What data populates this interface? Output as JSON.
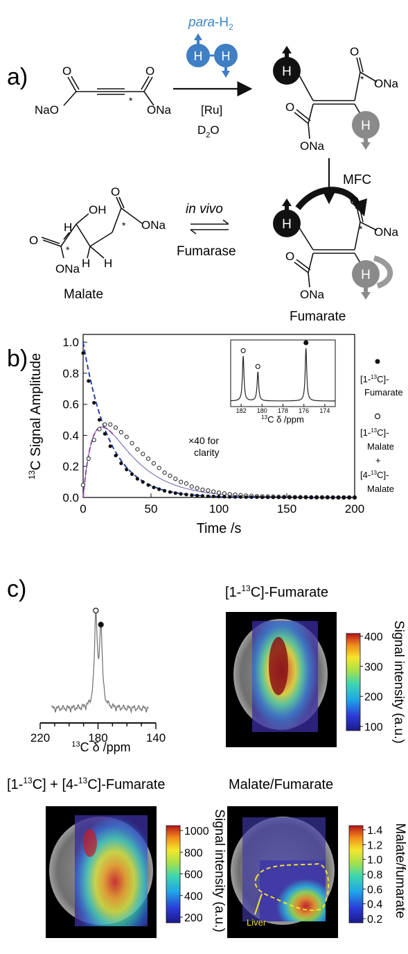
{
  "panels": {
    "a": "a)",
    "b": "b)",
    "c": "c)"
  },
  "scheme": {
    "para_h2": "para",
    "para_h2_suffix": "-H",
    "h_sub": "2",
    "atom_h": "H",
    "o": "O",
    "ona": "ONa",
    "naoo": "NaO",
    "oh": "OH",
    "star": "*",
    "catalyst": "[Ru]",
    "solvent": "D",
    "solvent_sub": "2",
    "solvent_suffix": "O",
    "mfc": "MFC",
    "in_vivo": "in vivo",
    "fumarase": "Fumarase",
    "malate": "Malate",
    "fumarate": "Fumarate"
  },
  "legend_b": {
    "l1": "[1-",
    "l1_sup": "13",
    "l1_end": "C]-",
    "l2": "Fumarate",
    "l3": "[1-",
    "l3_sup": "13",
    "l3_end": "C]-",
    "l4": "Malate",
    "l5": "+",
    "l6": "[4-",
    "l6_sup": "13",
    "l6_end": "C]-",
    "l7": "Malate"
  },
  "chart_b": {
    "ylabel_sup": "13",
    "ylabel": "C Signal Amplitude",
    "xlabel": "Time /s",
    "annotation1": "×40 for",
    "annotation2": "clarity",
    "inset_xlabel_sup": "13",
    "inset_xlabel": "C δ /ppm"
  },
  "panel_c": {
    "spec_xlabel_sup": "13",
    "spec_xlabel": "C δ /ppm",
    "map1_title_pre": "[1-",
    "map1_title_sup": "13",
    "map1_title_post": "C]-Fumarate",
    "map2_title_a": "[1-",
    "map2_title_sup1": "13",
    "map2_title_b": "C] + [4-",
    "map2_title_sup2": "13",
    "map2_title_c": "C]-Fumarate",
    "map3_title": "Malate/Fumarate",
    "cb1_label": "Signal intensity (a.u.)",
    "cb2_label": "Signal intensity (a.u.)",
    "cb3_label": "Malate/fumarate",
    "liver_label": "Liver",
    "cb1_ticks": [
      "400",
      "300",
      "200",
      "100"
    ],
    "cb2_ticks": [
      "1000",
      "800",
      "600",
      "400",
      "200"
    ],
    "cb3_ticks": [
      "1.4",
      "1.2",
      "1.0",
      "0.8",
      "0.6",
      "0.4",
      "0.2"
    ]
  },
  "chart_data": [
    {
      "type": "line",
      "xlabel": "Time /s",
      "ylabel": "13C Signal Amplitude",
      "xlim": [
        0,
        200
      ],
      "ylim": [
        0,
        1.05
      ],
      "xticks": [
        "0",
        "50",
        "100",
        "150",
        "200"
      ],
      "yticks": [
        "0.0",
        "0.2",
        "0.4",
        "0.6",
        "0.8",
        "1.0"
      ],
      "series": [
        {
          "name": "[1-13C]-Fumarate",
          "marker": "filled",
          "x": [
            0,
            4,
            8,
            12,
            16,
            20,
            24,
            28,
            32,
            36,
            40,
            44,
            48,
            52,
            56,
            60,
            64,
            68,
            72,
            76,
            80,
            84,
            88,
            92,
            96,
            100,
            104,
            108,
            112,
            116,
            120,
            124,
            128,
            132,
            136,
            140,
            144,
            148,
            152,
            156,
            160,
            164,
            168,
            172,
            176,
            180,
            184,
            188,
            192,
            196,
            200
          ],
          "y": [
            0.93,
            0.75,
            0.61,
            0.5,
            0.41,
            0.33,
            0.27,
            0.22,
            0.18,
            0.15,
            0.12,
            0.1,
            0.08,
            0.065,
            0.053,
            0.043,
            0.035,
            0.028,
            0.023,
            0.019,
            0.015,
            0.012,
            0.01,
            0.008,
            0.007,
            0.006,
            0.005,
            0.004,
            0.003,
            0.003,
            0.002,
            0.002,
            0.002,
            0.001,
            0.001,
            0.001,
            0.001,
            0.001,
            0.0,
            0.0,
            0.0,
            0.0,
            0.0,
            0.0,
            0.0,
            0.0,
            0.0,
            0.0,
            0.0,
            0.0,
            0.0
          ]
        },
        {
          "name": "[1-13C]-Malate + [4-13C]-Malate (×40)",
          "marker": "open",
          "x": [
            0,
            4,
            8,
            12,
            16,
            20,
            24,
            28,
            32,
            36,
            40,
            44,
            48,
            52,
            56,
            60,
            64,
            68,
            72,
            76,
            80,
            84,
            88,
            92,
            96,
            100,
            104,
            108,
            112,
            116,
            120,
            124,
            128,
            132,
            136,
            140,
            144,
            148,
            152,
            156,
            160,
            164,
            168,
            172,
            176,
            180,
            184,
            188,
            192,
            196,
            200
          ],
          "y": [
            0.08,
            0.25,
            0.37,
            0.44,
            0.47,
            0.47,
            0.45,
            0.42,
            0.39,
            0.35,
            0.31,
            0.28,
            0.25,
            0.22,
            0.19,
            0.16,
            0.14,
            0.12,
            0.1,
            0.09,
            0.07,
            0.06,
            0.05,
            0.045,
            0.038,
            0.031,
            0.026,
            0.021,
            0.018,
            0.015,
            0.012,
            0.01,
            0.008,
            0.007,
            0.006,
            0.005,
            0.004,
            0.003,
            0.003,
            0.002,
            0.002,
            0.002,
            0.001,
            0.001,
            0.001,
            0.001,
            0.0,
            0.0,
            0.0,
            0.0,
            0.0
          ]
        }
      ]
    },
    {
      "type": "line",
      "xlabel": "13C δ /ppm",
      "xticks": [
        "182",
        "180",
        "178",
        "176",
        "174"
      ],
      "xlim": [
        183,
        173
      ],
      "peaks": [
        {
          "x": 181.8,
          "height": 0.85,
          "marker": "open"
        },
        {
          "x": 180.4,
          "height": 0.55,
          "marker": "open"
        },
        {
          "x": 175.8,
          "height": 1.0,
          "marker": "filled"
        }
      ]
    },
    {
      "type": "line",
      "xlabel": "13C δ /ppm",
      "xticks": [
        "220",
        "180",
        "140"
      ],
      "xlim": [
        220,
        140
      ],
      "peaks": [
        {
          "x": 181.5,
          "height": 1.0,
          "marker": "open"
        },
        {
          "x": 178.0,
          "height": 0.85,
          "marker": "filled"
        }
      ]
    }
  ]
}
